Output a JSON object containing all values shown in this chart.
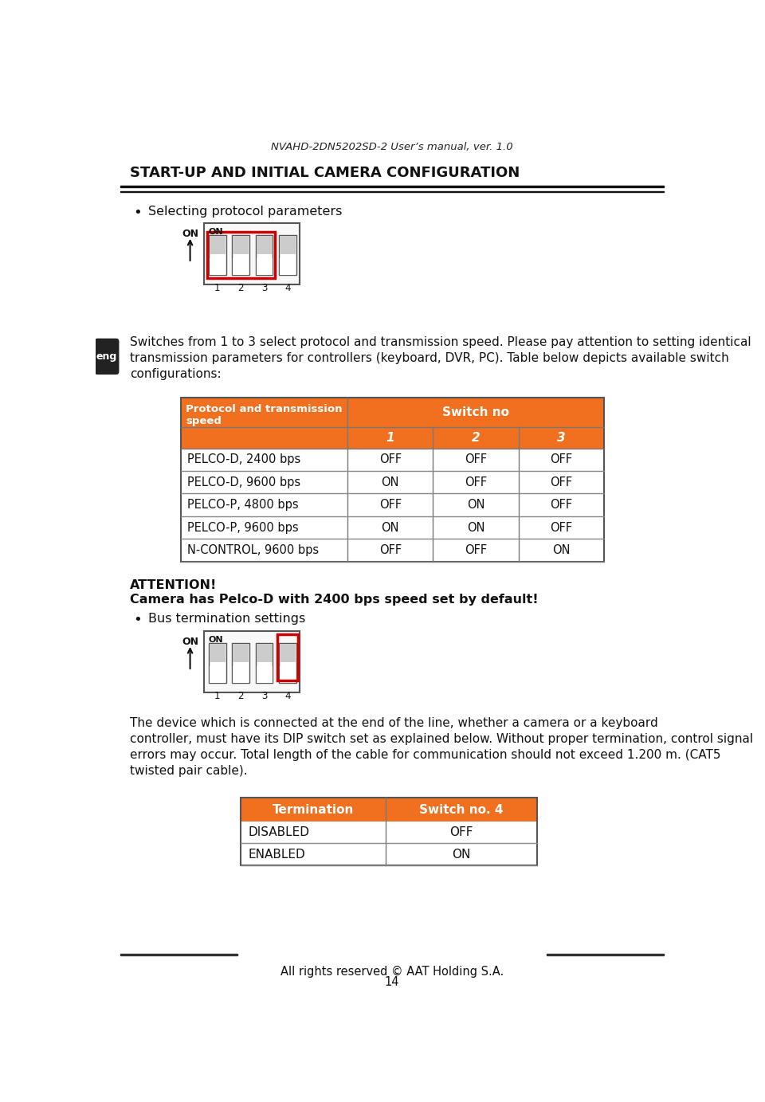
{
  "page_title": "NVAHD-2DN5202SD-2 User’s manual, ver. 1.0",
  "section_title": "START-UP AND INITIAL CAMERA CONFIGURATION",
  "bg_color": "#ffffff",
  "orange_color": "#f07020",
  "header_text_color": "#ffffff",
  "body_text_color": "#111111",
  "bullet_text1": "Selecting protocol parameters",
  "paragraph1_lines": [
    "Switches from 1 to 3 select protocol and transmission speed. Please pay attention to setting identical",
    "transmission parameters for controllers (keyboard, DVR, PC). Table below depicts available switch",
    "configurations:"
  ],
  "table1_header_col1": "Protocol and transmission\nspeed",
  "table1_subheader": [
    "1",
    "2",
    "3"
  ],
  "table1_rows": [
    [
      "PELCO-D, 2400 bps",
      "OFF",
      "OFF",
      "OFF"
    ],
    [
      "PELCO-D, 9600 bps",
      "ON",
      "OFF",
      "OFF"
    ],
    [
      "PELCO-P, 4800 bps",
      "OFF",
      "ON",
      "OFF"
    ],
    [
      "PELCO-P, 9600 bps",
      "ON",
      "ON",
      "OFF"
    ],
    [
      "N-CONTROL, 9600 bps",
      "OFF",
      "OFF",
      "ON"
    ]
  ],
  "attention_title": "ATTENTION!",
  "attention_body": "Camera has Pelco-D with 2400 bps speed set by default!",
  "bullet_text2": "Bus termination settings",
  "paragraph2_lines": [
    "The device which is connected at the end of the line, whether a camera or a keyboard",
    "controller, must have its DIP switch set as explained below. Without proper termination, control signal",
    "errors may occur. Total length of the cable for communication should not exceed 1.200 m. (CAT5",
    "twisted pair cable)."
  ],
  "table2_header_col1": "Termination",
  "table2_header_col2": "Switch no. 4",
  "table2_rows": [
    [
      "DISABLED",
      "OFF"
    ],
    [
      "ENABLED",
      "ON"
    ]
  ],
  "footer_text": "All rights reserved © AAT Holding S.A.",
  "page_number": "14"
}
